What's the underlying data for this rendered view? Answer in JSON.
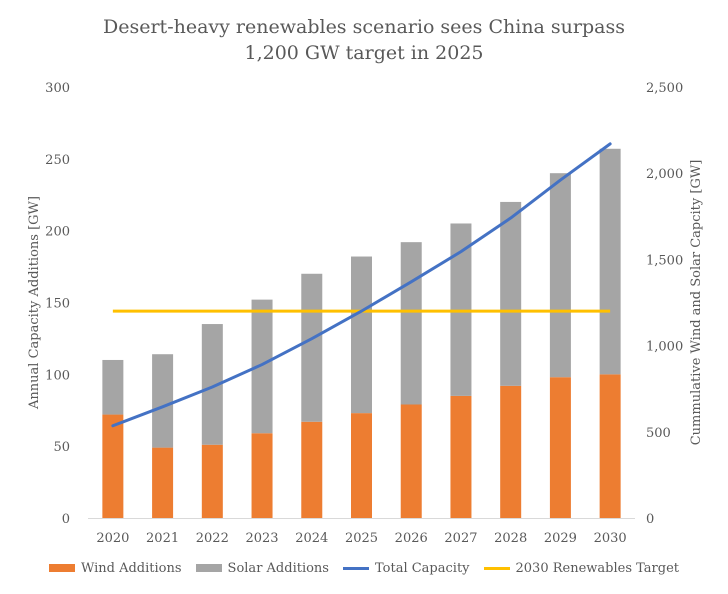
{
  "chart_data": {
    "type": "bar",
    "title_line1": "Desert-heavy renewables scenario sees China surpass",
    "title_line2": "1,200 GW target in 2025",
    "ylabel_left": "Annual Capacity Additions [GW]",
    "ylabel_right": "Cummulative Wind and Solar Capcity [GW]",
    "categories": [
      "2020",
      "2021",
      "2022",
      "2023",
      "2024",
      "2025",
      "2026",
      "2027",
      "2028",
      "2029",
      "2030"
    ],
    "ylim_left": [
      0,
      300
    ],
    "yticks_left": [
      "0",
      "50",
      "100",
      "150",
      "200",
      "250",
      "300"
    ],
    "ylim_right": [
      0,
      2500
    ],
    "yticks_right": [
      "0",
      "500",
      "1,000",
      "1,500",
      "2,000",
      "2,500"
    ],
    "grid": false,
    "legend_position": "bottom",
    "series": [
      {
        "name": "Wind Additions",
        "kind": "stacked-bar",
        "axis": "left",
        "color": "#ED7D31",
        "values": [
          72,
          49,
          51,
          59,
          67,
          73,
          79,
          85,
          92,
          98,
          100
        ]
      },
      {
        "name": "Solar Additions",
        "kind": "stacked-bar",
        "axis": "left",
        "color": "#A5A5A5",
        "values": [
          38,
          65,
          84,
          93,
          103,
          109,
          113,
          120,
          128,
          142,
          157
        ]
      },
      {
        "name": "Total Capacity",
        "kind": "line",
        "axis": "right",
        "color": "#4472C4",
        "values": [
          535,
          645,
          760,
          890,
          1040,
          1200,
          1370,
          1545,
          1740,
          1960,
          2170
        ]
      },
      {
        "name": "2030 Renewables Target",
        "kind": "line",
        "axis": "right",
        "color": "#FFC000",
        "values": [
          1200,
          1200,
          1200,
          1200,
          1200,
          1200,
          1200,
          1200,
          1200,
          1200,
          1200
        ]
      }
    ]
  }
}
